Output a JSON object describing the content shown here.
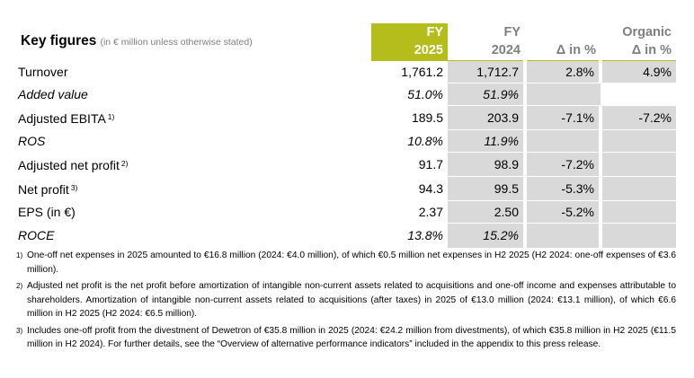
{
  "table": {
    "title": "Key figures",
    "subtitle": "(in € million unless otherwise stated)",
    "columns": [
      {
        "line1": "FY",
        "line2": "2025"
      },
      {
        "line1": "FY",
        "line2": "2024"
      },
      {
        "line1": "",
        "line2": "Δ in %"
      },
      {
        "line1": "Organic",
        "line2": "Δ in %"
      }
    ],
    "rows": [
      {
        "label": "Turnover",
        "footnote": "",
        "fy2025": "1,761.2",
        "fy2024": "1,712.7",
        "delta": "2.8%",
        "organic": "4.9%"
      },
      {
        "label": "Added value",
        "footnote": "",
        "fy2025": "51.0%",
        "fy2024": "51.9%",
        "delta": "",
        "organic": ""
      },
      {
        "label": "Adjusted EBITA",
        "footnote": "1)",
        "fy2025": "189.5",
        "fy2024": "203.9",
        "delta": "-7.1%",
        "organic": "-7.2%"
      },
      {
        "label": "ROS",
        "footnote": "",
        "fy2025": "10.8%",
        "fy2024": "11.9%",
        "delta": "",
        "organic": ""
      },
      {
        "label": "Adjusted net profit",
        "footnote": "2)",
        "fy2025": "91.7",
        "fy2024": "98.9",
        "delta": "-7.2%",
        "organic": ""
      },
      {
        "label": "Net profit",
        "footnote": "3)",
        "fy2025": "94.3",
        "fy2024": "99.5",
        "delta": "-5.3%",
        "organic": ""
      },
      {
        "label": "EPS (in €)",
        "footnote": "",
        "fy2025": "2.37",
        "fy2024": "2.50",
        "delta": "-5.2%",
        "organic": ""
      },
      {
        "label": "ROCE",
        "footnote": "",
        "fy2025": "13.8%",
        "fy2024": "15.2%",
        "delta": "",
        "organic": ""
      }
    ]
  },
  "footnotes": [
    {
      "num": "1)",
      "text": "One-off net expenses in 2025 amounted to €16.8 million (2024: €4.0 million), of which €0.5 million net expenses in H2 2025 (H2 2024: one-off expenses of €3.6 million)."
    },
    {
      "num": "2)",
      "text": "Adjusted net profit is the net profit before amortization of intangible non-current assets related to acquisitions and one-off income and expenses attributable to shareholders. Amortization of intangible non-current assets related to acquisitions (after taxes) in 2025 of €13.0 million (2024: €13.1 million), of which €6.6 million in H2 2025 (H2 2024: €6.5 million)."
    },
    {
      "num": "3)",
      "text": "Includes one-off profit from the divestment of Dewetron of €35.8 million in 2025 (2024: €24.2 million from divestments), of which €35.8 million in H2 2025 (€11.5 million in H2 2024). For further details, see the “Overview of alternative performance indicators” included in the appendix to this press release."
    }
  ]
}
